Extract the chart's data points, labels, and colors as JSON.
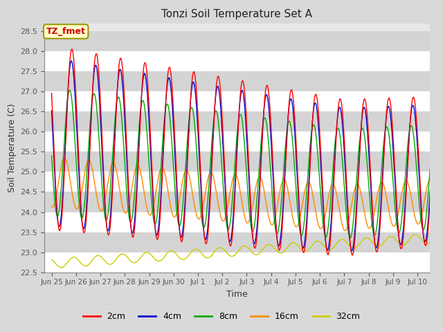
{
  "title": "Tonzi Soil Temperature Set A",
  "xlabel": "Time",
  "ylabel": "Soil Temperature (C)",
  "annotation": "TZ_fmet",
  "annotation_color": "#cc0000",
  "annotation_bg": "#ffffcc",
  "annotation_border": "#999900",
  "ylim": [
    22.5,
    28.7
  ],
  "colors": {
    "2cm": "#ff0000",
    "4cm": "#0000cc",
    "8cm": "#00aa00",
    "16cm": "#ff8800",
    "32cm": "#cccc00"
  },
  "yticks": [
    22.5,
    23.0,
    23.5,
    24.0,
    24.5,
    25.0,
    25.5,
    26.0,
    26.5,
    27.0,
    27.5,
    28.0,
    28.5
  ],
  "xtick_labels": [
    "Jun 25",
    "Jun 26",
    "Jun 27",
    "Jun 28",
    "Jun 29",
    "Jun 30",
    "Jul 1",
    "Jul 2",
    "Jul 3",
    "Jul 4",
    "Jul 5",
    "Jul 6",
    "Jul 7",
    "Jul 8",
    "Jul 9",
    "Jul 10"
  ],
  "xtick_positions": [
    0,
    1,
    2,
    3,
    4,
    5,
    6,
    7,
    8,
    9,
    10,
    11,
    12,
    13,
    14,
    15
  ],
  "fig_bg": "#d9d9d9",
  "plot_bg": "#e8e8e8",
  "stripe_color": "#d4d4d4"
}
